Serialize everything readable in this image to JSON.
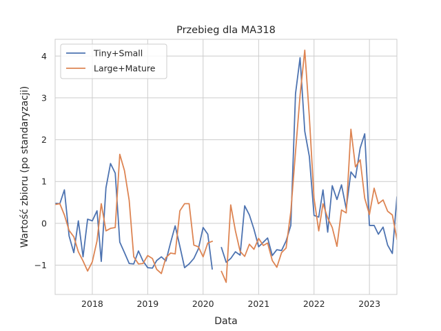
{
  "chart_data": {
    "type": "line",
    "title": "Przebieg dla MA318",
    "xlabel": "Data",
    "ylabel": "Wartość zbioru (po standaryzacji)",
    "xlim": [
      "2017-05-01",
      "2023-07-01"
    ],
    "ylim": [
      -1.7,
      4.4
    ],
    "x_ticks": [
      "2018-01-01",
      "2019-01-01",
      "2020-01-01",
      "2021-01-01",
      "2022-01-01",
      "2023-01-01"
    ],
    "x_tick_labels": [
      "2018",
      "2019",
      "2020",
      "2021",
      "2022",
      "2023"
    ],
    "y_ticks": [
      -1,
      0,
      1,
      2,
      3,
      4
    ],
    "y_tick_labels": [
      "−1",
      "0",
      "1",
      "2",
      "3",
      "4"
    ],
    "grid": true,
    "legend": "top-left",
    "x": [
      "2017-05-01",
      "2017-06-01",
      "2017-07-01",
      "2017-08-01",
      "2017-09-01",
      "2017-10-01",
      "2017-11-01",
      "2017-12-01",
      "2018-01-01",
      "2018-02-01",
      "2018-03-01",
      "2018-04-01",
      "2018-05-01",
      "2018-06-01",
      "2018-07-01",
      "2018-08-01",
      "2018-09-01",
      "2018-10-01",
      "2018-11-01",
      "2018-12-01",
      "2019-01-01",
      "2019-02-01",
      "2019-03-01",
      "2019-04-01",
      "2019-05-01",
      "2019-06-01",
      "2019-07-01",
      "2019-08-01",
      "2019-09-01",
      "2019-10-01",
      "2019-11-01",
      "2019-12-01",
      "2020-01-01",
      "2020-02-01",
      "2020-03-01",
      "2020-04-01",
      "2020-05-01",
      "2020-06-01",
      "2020-07-01",
      "2020-08-01",
      "2020-09-01",
      "2020-10-01",
      "2020-11-01",
      "2020-12-01",
      "2021-01-01",
      "2021-02-01",
      "2021-03-01",
      "2021-04-01",
      "2021-05-01",
      "2021-06-01",
      "2021-07-01",
      "2021-08-01",
      "2021-09-01",
      "2021-10-01",
      "2021-11-01",
      "2021-12-01",
      "2022-01-01",
      "2022-02-01",
      "2022-03-01",
      "2022-04-01",
      "2022-05-01",
      "2022-06-01",
      "2022-07-01",
      "2022-08-01",
      "2022-09-01",
      "2022-10-01",
      "2022-11-01",
      "2022-12-01",
      "2023-01-01",
      "2023-02-01",
      "2023-03-01",
      "2023-04-01",
      "2023-05-01",
      "2023-06-01",
      "2023-07-01"
    ],
    "series": [
      {
        "name": "Tiny+Small",
        "color": "#4c72b0",
        "values": [
          0.48,
          0.47,
          0.8,
          -0.3,
          -0.7,
          0.06,
          -0.8,
          0.1,
          0.06,
          0.3,
          -0.91,
          0.85,
          1.43,
          1.2,
          -0.45,
          -0.7,
          -0.96,
          -0.97,
          -0.66,
          -0.9,
          -1.06,
          -1.07,
          -0.89,
          -0.8,
          -0.9,
          -0.46,
          -0.06,
          -0.55,
          -1.06,
          -0.97,
          -0.84,
          -0.61,
          -0.1,
          -0.26,
          -1.09,
          null,
          -0.58,
          -0.93,
          -0.84,
          -0.68,
          -0.76,
          0.42,
          0.2,
          -0.14,
          -0.56,
          -0.45,
          -0.35,
          -0.77,
          -0.63,
          -0.65,
          -0.42,
          -0.05,
          3.1,
          3.96,
          2.2,
          1.6,
          0.19,
          0.15,
          0.8,
          -0.21,
          0.9,
          0.57,
          0.92,
          0.35,
          1.23,
          1.09,
          1.8,
          2.14,
          -0.05,
          -0.05,
          -0.26,
          -0.09,
          -0.52,
          -0.72,
          0.63
        ]
      },
      {
        "name": "Large+Mature",
        "color": "#dd8452",
        "values": [
          0.45,
          0.47,
          0.2,
          -0.17,
          -0.32,
          -0.68,
          -0.9,
          -1.14,
          -0.92,
          -0.42,
          0.47,
          -0.18,
          -0.12,
          -0.1,
          1.65,
          1.26,
          0.55,
          -0.8,
          -0.97,
          -0.96,
          -0.77,
          -0.84,
          -1.1,
          -1.2,
          -0.82,
          -0.71,
          -0.73,
          0.3,
          0.47,
          0.47,
          -0.52,
          -0.56,
          -0.8,
          -0.47,
          -0.43,
          null,
          -1.15,
          -1.41,
          0.44,
          -0.18,
          -0.67,
          -0.79,
          -0.5,
          -0.62,
          -0.36,
          -0.53,
          -0.47,
          -0.89,
          -1.05,
          -0.7,
          -0.59,
          0.28,
          1.71,
          3.06,
          4.14,
          2.55,
          0.6,
          -0.18,
          0.47,
          0.13,
          -0.1,
          -0.55,
          0.32,
          0.25,
          2.25,
          1.35,
          1.52,
          0.6,
          0.21,
          0.84,
          0.47,
          0.56,
          0.29,
          0.2,
          -0.38
        ]
      }
    ]
  }
}
